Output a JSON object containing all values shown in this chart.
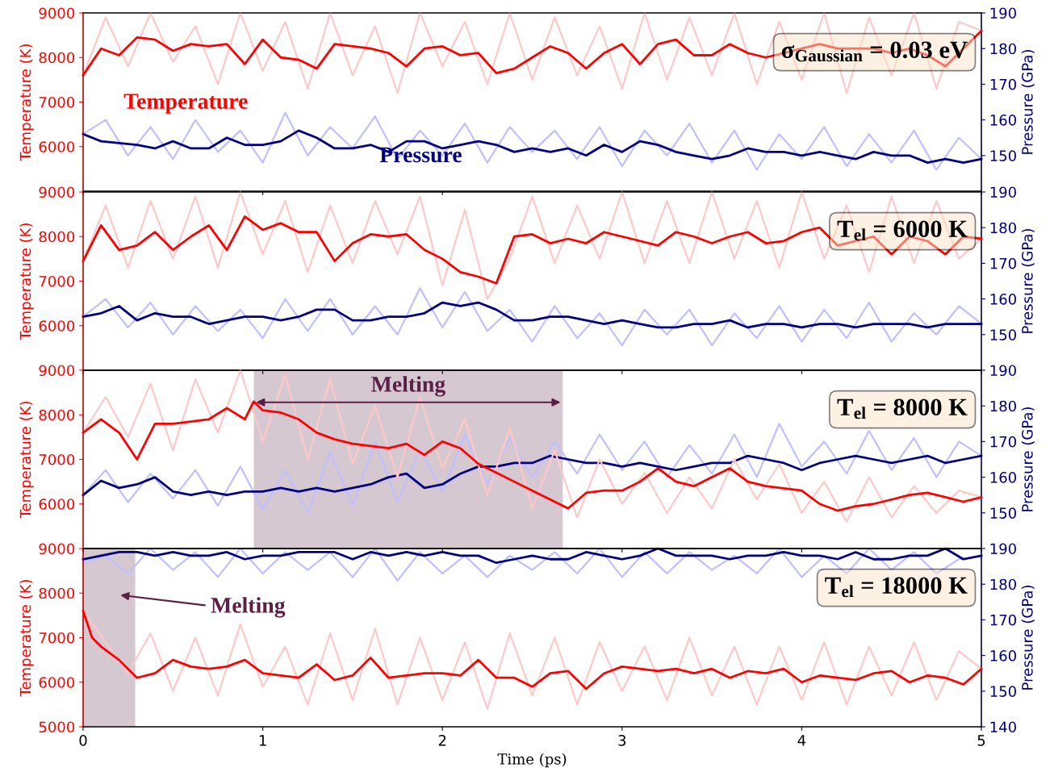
{
  "chart_data": [
    {
      "type": "line",
      "ylabel": "Temperature (K)",
      "y2label": "Pressure (GPa)",
      "annotations": [
        "σ$_{Gaussian}$ = 0.03 eV"
      ],
      "xlim": [
        0,
        5
      ],
      "xticks": [
        0,
        1,
        2,
        3,
        4,
        5
      ],
      "ylim": [
        5000,
        9000
      ],
      "yticks": [
        6000,
        7000,
        8000,
        9000
      ],
      "y2lim": [
        140,
        190
      ],
      "y2ticks": [
        150,
        160,
        170,
        180,
        190
      ],
      "tick_labels": "y",
      "grid": false,
      "legend": false,
      "series": [
        {
          "color": "#ffc8c8",
          "x": [
            0,
            0.125,
            0.25,
            0.375,
            0.5,
            0.625,
            0.75,
            0.875,
            1,
            1.125,
            1.25,
            1.375,
            1.5,
            1.625,
            1.75,
            1.875,
            2,
            2.125,
            2.25,
            2.375,
            2.5,
            2.625,
            2.75,
            2.875,
            3,
            3.125,
            3.25,
            3.375,
            3.5,
            3.625,
            3.75,
            3.875,
            4,
            4.125,
            4.25,
            4.375,
            4.5,
            4.625,
            4.75,
            4.875,
            5
          ],
          "values": [
            7600,
            8900,
            7800,
            9000,
            7900,
            8700,
            7400,
            9000,
            7700,
            8800,
            7300,
            9000,
            7600,
            8700,
            7200,
            9000,
            7800,
            8800,
            7400,
            9000,
            7500,
            8900,
            7600,
            8700,
            7300,
            9000,
            7500,
            8900,
            7600,
            9000,
            7400,
            8800,
            7500,
            9000,
            7200,
            8900,
            7600,
            9000,
            7300,
            8800,
            8600
          ]
        },
        {
          "color": "#c0c0ff",
          "axis": "y2",
          "x": [
            0,
            0.125,
            0.25,
            0.375,
            0.5,
            0.625,
            0.75,
            0.875,
            1,
            1.125,
            1.25,
            1.375,
            1.5,
            1.625,
            1.75,
            1.875,
            2,
            2.125,
            2.25,
            2.375,
            2.5,
            2.625,
            2.75,
            2.875,
            3,
            3.125,
            3.25,
            3.375,
            3.5,
            3.625,
            3.75,
            3.875,
            4,
            4.125,
            4.25,
            4.375,
            4.5,
            4.625,
            4.75,
            4.875,
            5
          ],
          "values": [
            156,
            160,
            150,
            158,
            149,
            160,
            151,
            157,
            148,
            162,
            150,
            158,
            152,
            161,
            149,
            157,
            150,
            159,
            148,
            158,
            151,
            157,
            149,
            158,
            147,
            157,
            150,
            159,
            148,
            157,
            146,
            156,
            149,
            158,
            147,
            156,
            148,
            157,
            146,
            155,
            149
          ]
        },
        {
          "name": "Temperature",
          "color": "#ff0000",
          "x": [
            0,
            0.1,
            0.2,
            0.3,
            0.4,
            0.5,
            0.6,
            0.7,
            0.8,
            0.9,
            1,
            1.1,
            1.2,
            1.3,
            1.4,
            1.5,
            1.6,
            1.7,
            1.8,
            1.9,
            2,
            2.1,
            2.2,
            2.3,
            2.4,
            2.5,
            2.6,
            2.7,
            2.8,
            2.9,
            3,
            3.1,
            3.2,
            3.3,
            3.4,
            3.5,
            3.6,
            3.7,
            3.8,
            3.9,
            4,
            4.1,
            4.2,
            4.3,
            4.4,
            4.5,
            4.6,
            4.7,
            4.8,
            4.9,
            5
          ],
          "values": [
            7600,
            8200,
            8050,
            8450,
            8400,
            8150,
            8300,
            8250,
            8300,
            7850,
            8400,
            8000,
            7950,
            7750,
            8300,
            8250,
            8200,
            8100,
            7800,
            8200,
            8250,
            8050,
            8100,
            7650,
            7750,
            8000,
            8250,
            8100,
            7750,
            8100,
            8300,
            7850,
            8300,
            8400,
            8050,
            8050,
            8300,
            8100,
            8000,
            8100,
            8200,
            8300,
            8200,
            8200,
            8200,
            8100,
            8200,
            8050,
            7800,
            8200,
            8600
          ]
        },
        {
          "name": "Pressure",
          "color": "#000080",
          "axis": "y2",
          "x": [
            0,
            0.1,
            0.2,
            0.3,
            0.4,
            0.5,
            0.6,
            0.7,
            0.8,
            0.9,
            1,
            1.1,
            1.2,
            1.3,
            1.4,
            1.5,
            1.6,
            1.7,
            1.8,
            1.9,
            2,
            2.1,
            2.2,
            2.3,
            2.4,
            2.5,
            2.6,
            2.7,
            2.8,
            2.9,
            3,
            3.1,
            3.2,
            3.3,
            3.4,
            3.5,
            3.6,
            3.7,
            3.8,
            3.9,
            4,
            4.1,
            4.2,
            4.3,
            4.4,
            4.5,
            4.6,
            4.7,
            4.8,
            4.9,
            5
          ],
          "values": [
            156,
            154,
            153.5,
            153,
            152,
            154,
            152,
            152,
            155,
            153,
            153,
            154,
            157,
            155,
            152,
            152,
            153,
            151,
            154,
            154,
            152,
            153,
            154,
            153,
            151,
            152,
            151,
            152,
            150,
            153,
            151,
            154,
            153,
            151,
            150,
            149,
            150,
            152,
            151,
            151,
            150,
            151,
            150,
            149,
            151,
            150,
            150,
            148,
            149,
            148,
            149
          ]
        }
      ]
    },
    {
      "type": "line",
      "ylabel": "Temperature (K)",
      "y2label": "Pressure (GPa)",
      "annotations": [
        "T$_{el}$ = 6000 K"
      ],
      "xlim": [
        0,
        5
      ],
      "xticks": [
        0,
        1,
        2,
        3,
        4,
        5
      ],
      "ylim": [
        5000,
        9000
      ],
      "yticks": [
        6000,
        7000,
        8000,
        9000
      ],
      "y2lim": [
        140,
        190
      ],
      "y2ticks": [
        150,
        160,
        170,
        180,
        190
      ],
      "tick_labels": "y",
      "grid": false,
      "legend": false,
      "series": [
        {
          "color": "#ffc8c8",
          "x": [
            0,
            0.125,
            0.25,
            0.375,
            0.5,
            0.625,
            0.75,
            0.875,
            1,
            1.125,
            1.25,
            1.375,
            1.5,
            1.625,
            1.75,
            1.875,
            2,
            2.125,
            2.25,
            2.375,
            2.5,
            2.625,
            2.75,
            2.875,
            3,
            3.125,
            3.25,
            3.375,
            3.5,
            3.625,
            3.75,
            3.875,
            4,
            4.125,
            4.25,
            4.375,
            4.5,
            4.625,
            4.75,
            4.875,
            5
          ],
          "values": [
            7450,
            8700,
            7300,
            8800,
            7500,
            8900,
            7300,
            9000,
            7600,
            8800,
            7200,
            8700,
            7400,
            8800,
            7600,
            8900,
            6900,
            8600,
            6600,
            7500,
            8900,
            7400,
            8700,
            7500,
            9000,
            7400,
            8800,
            7400,
            9000,
            7500,
            8800,
            7300,
            9000,
            7500,
            8700,
            7200,
            8900,
            7400,
            8800,
            7500,
            7950
          ]
        },
        {
          "color": "#c0c0ff",
          "axis": "y2",
          "x": [
            0,
            0.125,
            0.25,
            0.375,
            0.5,
            0.625,
            0.75,
            0.875,
            1,
            1.125,
            1.25,
            1.375,
            1.5,
            1.625,
            1.75,
            1.875,
            2,
            2.125,
            2.25,
            2.375,
            2.5,
            2.625,
            2.75,
            2.875,
            3,
            3.125,
            3.25,
            3.375,
            3.5,
            3.625,
            3.75,
            3.875,
            4,
            4.125,
            4.25,
            4.375,
            4.5,
            4.625,
            4.75,
            4.875,
            5
          ],
          "values": [
            155,
            160,
            152,
            159,
            150,
            158,
            151,
            157,
            149,
            160,
            151,
            160,
            150,
            158,
            150,
            163,
            152,
            162,
            151,
            157,
            148,
            158,
            149,
            156,
            147,
            157,
            150,
            157,
            147,
            156,
            149,
            158,
            148,
            157,
            149,
            159,
            148,
            156,
            150,
            158,
            153
          ]
        },
        {
          "color": "#ff0000",
          "x": [
            0,
            0.1,
            0.2,
            0.3,
            0.4,
            0.5,
            0.6,
            0.7,
            0.8,
            0.9,
            1,
            1.1,
            1.2,
            1.3,
            1.4,
            1.5,
            1.6,
            1.7,
            1.8,
            1.9,
            2,
            2.1,
            2.2,
            2.3,
            2.4,
            2.5,
            2.6,
            2.7,
            2.8,
            2.9,
            3,
            3.1,
            3.2,
            3.3,
            3.4,
            3.5,
            3.6,
            3.7,
            3.8,
            3.9,
            4,
            4.1,
            4.2,
            4.3,
            4.4,
            4.5,
            4.6,
            4.7,
            4.8,
            4.9,
            5
          ],
          "values": [
            7450,
            8250,
            7700,
            7800,
            8100,
            7700,
            8000,
            8250,
            7700,
            8450,
            8150,
            8300,
            8100,
            8100,
            7450,
            7850,
            8050,
            8000,
            8050,
            7700,
            7500,
            7200,
            7100,
            6950,
            8000,
            8050,
            7850,
            7950,
            7850,
            8100,
            8000,
            7900,
            7800,
            8100,
            8000,
            7850,
            8000,
            8100,
            7850,
            7900,
            8100,
            8200,
            7800,
            7900,
            8000,
            7600,
            8000,
            7900,
            7600,
            8000,
            7950
          ]
        },
        {
          "color": "#000080",
          "axis": "y2",
          "x": [
            0,
            0.1,
            0.2,
            0.3,
            0.4,
            0.5,
            0.6,
            0.7,
            0.8,
            0.9,
            1,
            1.1,
            1.2,
            1.3,
            1.4,
            1.5,
            1.6,
            1.7,
            1.8,
            1.9,
            2,
            2.1,
            2.2,
            2.3,
            2.4,
            2.5,
            2.6,
            2.7,
            2.8,
            2.9,
            3,
            3.1,
            3.2,
            3.3,
            3.4,
            3.5,
            3.6,
            3.7,
            3.8,
            3.9,
            4,
            4.1,
            4.2,
            4.3,
            4.4,
            4.5,
            4.6,
            4.7,
            4.8,
            4.9,
            5
          ],
          "values": [
            155,
            156,
            158,
            154,
            156,
            155,
            155,
            153,
            154,
            155,
            155,
            154,
            155,
            157,
            157,
            154,
            154,
            155,
            155,
            156,
            159,
            158,
            159,
            157,
            154,
            154,
            155,
            155,
            154,
            153,
            154,
            153,
            152,
            152,
            153,
            153,
            154,
            152,
            153,
            153,
            152,
            153,
            153,
            152,
            153,
            153,
            153,
            152,
            153,
            153,
            153
          ]
        }
      ]
    },
    {
      "type": "line",
      "ylabel": "Temperature (K)",
      "y2label": "Pressure (GPa)",
      "annotations": [
        "T$_{el}$ = 8000 K"
      ],
      "xlim": [
        0,
        5
      ],
      "xticks": [
        0,
        1,
        2,
        3,
        4,
        5
      ],
      "ylim": [
        5000,
        9000
      ],
      "yticks": [
        6000,
        7000,
        8000,
        9000
      ],
      "y2lim": [
        140,
        190
      ],
      "y2ticks": [
        150,
        160,
        170,
        180,
        190
      ],
      "tick_labels": "y",
      "grid": false,
      "legend": false,
      "bands": [
        {
          "axis": "x",
          "from": 0.95,
          "to": 2.67,
          "label": "Melting",
          "color": "#6b3a5b"
        }
      ],
      "series": [
        {
          "color": "#ffc8c8",
          "x": [
            0,
            0.125,
            0.25,
            0.375,
            0.5,
            0.625,
            0.75,
            0.875,
            1,
            1.125,
            1.25,
            1.375,
            1.5,
            1.625,
            1.75,
            1.875,
            2,
            2.125,
            2.25,
            2.375,
            2.5,
            2.625,
            2.75,
            2.875,
            3,
            3.125,
            3.25,
            3.375,
            3.5,
            3.625,
            3.75,
            3.875,
            4,
            4.125,
            4.25,
            4.375,
            4.5,
            4.625,
            4.75,
            4.875,
            5
          ],
          "values": [
            7600,
            8400,
            7500,
            8700,
            7200,
            8800,
            7600,
            9000,
            7400,
            8900,
            7000,
            8800,
            6900,
            8200,
            6600,
            8400,
            6800,
            7900,
            6200,
            7700,
            5900,
            7200,
            5700,
            7000,
            6000,
            6700,
            5800,
            6600,
            5900,
            7000,
            6100,
            6900,
            5800,
            6500,
            5600,
            6600,
            5700,
            6400,
            5800,
            6300,
            6150
          ]
        },
        {
          "color": "#c0c0ff",
          "axis": "y2",
          "x": [
            0,
            0.125,
            0.25,
            0.375,
            0.5,
            0.625,
            0.75,
            0.875,
            1,
            1.125,
            1.25,
            1.375,
            1.5,
            1.625,
            1.75,
            1.875,
            2,
            2.125,
            2.25,
            2.375,
            2.5,
            2.625,
            2.75,
            2.875,
            3,
            3.125,
            3.25,
            3.375,
            3.5,
            3.625,
            3.75,
            3.875,
            4,
            4.125,
            4.25,
            4.375,
            4.5,
            4.625,
            4.75,
            4.875,
            5
          ],
          "values": [
            155,
            162,
            153,
            161,
            154,
            162,
            152,
            163,
            151,
            162,
            150,
            167,
            152,
            170,
            153,
            168,
            156,
            172,
            158,
            171,
            160,
            170,
            161,
            172,
            162,
            170,
            160,
            169,
            161,
            172,
            160,
            175,
            163,
            170,
            161,
            173,
            162,
            171,
            160,
            170,
            166
          ]
        },
        {
          "color": "#ff0000",
          "x": [
            0,
            0.1,
            0.2,
            0.3,
            0.4,
            0.5,
            0.6,
            0.7,
            0.8,
            0.9,
            0.95,
            1,
            1.1,
            1.2,
            1.3,
            1.4,
            1.5,
            1.6,
            1.7,
            1.8,
            1.9,
            2,
            2.1,
            2.2,
            2.3,
            2.4,
            2.5,
            2.6,
            2.7,
            2.8,
            2.9,
            3,
            3.1,
            3.2,
            3.3,
            3.4,
            3.5,
            3.6,
            3.7,
            3.8,
            3.9,
            4,
            4.1,
            4.2,
            4.3,
            4.4,
            4.5,
            4.6,
            4.7,
            4.8,
            4.9,
            5
          ],
          "values": [
            7600,
            7900,
            7600,
            7000,
            7800,
            7800,
            7850,
            7900,
            8150,
            7900,
            8300,
            8100,
            8050,
            7900,
            7600,
            7450,
            7350,
            7300,
            7250,
            7350,
            7100,
            7400,
            7250,
            6900,
            6700,
            6500,
            6300,
            6100,
            5900,
            6250,
            6300,
            6300,
            6500,
            6800,
            6500,
            6400,
            6600,
            6800,
            6500,
            6400,
            6350,
            6300,
            6000,
            5850,
            5950,
            6000,
            6100,
            6200,
            6250,
            6150,
            6050,
            6150
          ]
        },
        {
          "color": "#000080",
          "axis": "y2",
          "x": [
            0,
            0.1,
            0.2,
            0.3,
            0.4,
            0.5,
            0.6,
            0.7,
            0.8,
            0.9,
            1,
            1.1,
            1.2,
            1.3,
            1.4,
            1.5,
            1.6,
            1.7,
            1.8,
            1.9,
            2,
            2.1,
            2.2,
            2.3,
            2.4,
            2.5,
            2.6,
            2.7,
            2.8,
            2.9,
            3,
            3.1,
            3.2,
            3.3,
            3.4,
            3.5,
            3.6,
            3.7,
            3.8,
            3.9,
            4,
            4.1,
            4.2,
            4.3,
            4.4,
            4.5,
            4.6,
            4.7,
            4.8,
            4.9,
            5
          ],
          "values": [
            155,
            159,
            157,
            158,
            160,
            156,
            155,
            156,
            155,
            156,
            156,
            157,
            156,
            157,
            156,
            157,
            158,
            160,
            161,
            157,
            158,
            161,
            163,
            163,
            164,
            164,
            166,
            165,
            164,
            164,
            163,
            164,
            163,
            162,
            163,
            164,
            164,
            166,
            165,
            164,
            162,
            164,
            165,
            166,
            165,
            164,
            165,
            166,
            164,
            165,
            166
          ]
        }
      ]
    },
    {
      "type": "line",
      "xlabel": "Time (ps)",
      "ylabel": "Temperature (K)",
      "y2label": "Pressure (GPa)",
      "annotations": [
        "T$_{el}$ = 18000 K"
      ],
      "xlim": [
        0,
        5
      ],
      "xticks": [
        0,
        1,
        2,
        3,
        4,
        5
      ],
      "ylim": [
        5000,
        9000
      ],
      "yticks": [
        5000,
        6000,
        7000,
        8000,
        9000
      ],
      "y2lim": [
        140,
        190
      ],
      "y2ticks": [
        140,
        150,
        160,
        170,
        180,
        190
      ],
      "grid": false,
      "legend": false,
      "bands": [
        {
          "axis": "x",
          "from": 0,
          "to": 0.29,
          "label": "Melting",
          "color": "#6b3a5b"
        }
      ],
      "series": [
        {
          "color": "#ffc8c8",
          "x": [
            0,
            0.125,
            0.25,
            0.375,
            0.5,
            0.625,
            0.75,
            0.875,
            1,
            1.125,
            1.25,
            1.375,
            1.5,
            1.625,
            1.75,
            1.875,
            2,
            2.125,
            2.25,
            2.375,
            2.5,
            2.625,
            2.75,
            2.875,
            3,
            3.125,
            3.25,
            3.375,
            3.5,
            3.625,
            3.75,
            3.875,
            4,
            4.125,
            4.25,
            4.375,
            4.5,
            4.625,
            4.75,
            4.875,
            5
          ],
          "values": [
            7600,
            6900,
            6200,
            7100,
            5800,
            7000,
            5700,
            7300,
            5900,
            6800,
            5500,
            7100,
            5600,
            7200,
            5500,
            7000,
            5600,
            6900,
            5400,
            7100,
            5700,
            7000,
            5500,
            6900,
            5800,
            6800,
            5600,
            7000,
            5700,
            6800,
            5500,
            6800,
            5600,
            6900,
            5500,
            6800,
            5700,
            6900,
            5600,
            6700,
            6300
          ]
        },
        {
          "color": "#c0c0ff",
          "axis": "y2",
          "x": [
            0,
            0.125,
            0.25,
            0.375,
            0.5,
            0.625,
            0.75,
            0.875,
            1,
            1.125,
            1.25,
            1.375,
            1.5,
            1.625,
            1.75,
            1.875,
            2,
            2.125,
            2.25,
            2.375,
            2.5,
            2.625,
            2.75,
            2.875,
            3,
            3.125,
            3.25,
            3.375,
            3.5,
            3.625,
            3.75,
            3.875,
            4,
            4.125,
            4.25,
            4.375,
            4.5,
            4.625,
            4.75,
            4.875,
            5
          ],
          "values": [
            186,
            188,
            183,
            190,
            184,
            189,
            182,
            190,
            183,
            189,
            184,
            189,
            182,
            190,
            181,
            189,
            183,
            188,
            182,
            188,
            184,
            189,
            183,
            190,
            182,
            189,
            183,
            189,
            184,
            188,
            183,
            190,
            182,
            188,
            183,
            190,
            184,
            189,
            183,
            187,
            188
          ]
        },
        {
          "color": "#ff0000",
          "x": [
            0,
            0.05,
            0.1,
            0.2,
            0.3,
            0.4,
            0.5,
            0.6,
            0.7,
            0.8,
            0.9,
            1,
            1.1,
            1.2,
            1.3,
            1.4,
            1.5,
            1.6,
            1.7,
            1.8,
            1.9,
            2,
            2.1,
            2.2,
            2.3,
            2.4,
            2.5,
            2.6,
            2.7,
            2.8,
            2.9,
            3,
            3.1,
            3.2,
            3.3,
            3.4,
            3.5,
            3.6,
            3.7,
            3.8,
            3.9,
            4,
            4.1,
            4.2,
            4.3,
            4.4,
            4.5,
            4.6,
            4.7,
            4.8,
            4.9,
            5
          ],
          "values": [
            7600,
            7000,
            6800,
            6500,
            6100,
            6200,
            6500,
            6350,
            6300,
            6350,
            6500,
            6200,
            6150,
            6100,
            6400,
            6050,
            6150,
            6550,
            6100,
            6150,
            6200,
            6200,
            6150,
            6500,
            6100,
            6100,
            5900,
            6200,
            6250,
            5850,
            6200,
            6350,
            6300,
            6250,
            6300,
            6200,
            6300,
            6100,
            6250,
            6200,
            6300,
            6000,
            6150,
            6100,
            6050,
            6200,
            6250,
            6000,
            6150,
            6100,
            5950,
            6300
          ]
        },
        {
          "color": "#000080",
          "axis": "y2",
          "x": [
            0,
            0.1,
            0.2,
            0.3,
            0.4,
            0.5,
            0.6,
            0.7,
            0.8,
            0.9,
            1,
            1.1,
            1.2,
            1.3,
            1.4,
            1.5,
            1.6,
            1.7,
            1.8,
            1.9,
            2,
            2.1,
            2.2,
            2.3,
            2.4,
            2.5,
            2.6,
            2.7,
            2.8,
            2.9,
            3,
            3.1,
            3.2,
            3.3,
            3.4,
            3.5,
            3.6,
            3.7,
            3.8,
            3.9,
            4,
            4.1,
            4.2,
            4.3,
            4.4,
            4.5,
            4.6,
            4.7,
            4.8,
            4.9,
            5
          ],
          "values": [
            187,
            188,
            189,
            189,
            188,
            189,
            188,
            188,
            189,
            187,
            188,
            188,
            189,
            189,
            189,
            187,
            189,
            188,
            189,
            188,
            189,
            188,
            188,
            186,
            187,
            188,
            187,
            187,
            189,
            188,
            187,
            188,
            190,
            188,
            188,
            188,
            187,
            188,
            188,
            189,
            188,
            188,
            187,
            189,
            187,
            187,
            188,
            188,
            190,
            187,
            188
          ]
        }
      ]
    }
  ]
}
